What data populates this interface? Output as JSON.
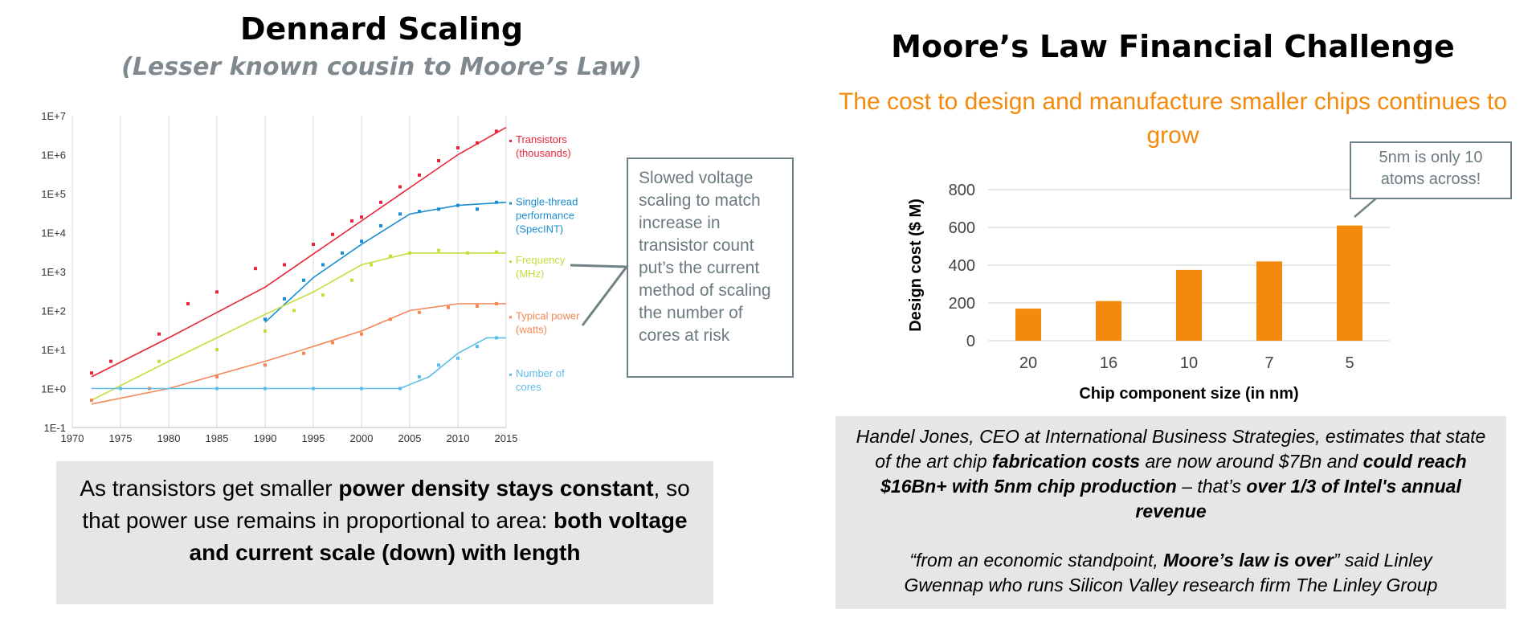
{
  "left": {
    "title": "Dennard Scaling",
    "subtitle": "(Lesser known cousin to Moore’s Law)",
    "callout": "Slowed voltage scaling to match increase in transistor count put’s the current method of scaling the number of cores at risk",
    "caption": {
      "t1": "As transistors get smaller ",
      "b1": "power density stays constant",
      "t2": ", so that power use remains in proportional to area: ",
      "b2": "both voltage and current scale (down) with length"
    }
  },
  "right": {
    "title": "Moore’s Law Financial Challenge",
    "subtitle": "The cost to design and manufacture smaller chips continues to grow",
    "callout": "5nm is only 10 atoms across!",
    "quote": {
      "p1": {
        "t1": "Handel Jones, CEO at International Business Strategies, estimates that state of the art chip ",
        "b1": "fabrication costs",
        "t2": " are now around $7Bn and ",
        "b2": "could reach $16Bn+ with 5nm chip production",
        "t3": " – that’s ",
        "b3": "over 1/3 of Intel's annual revenue"
      },
      "p2": {
        "t1": "“from an economic standpoint, ",
        "b1": "Moore’s law is over",
        "t2": "” said Linley Gwennap who runs Silicon Valley research firm The Linley Group"
      }
    }
  },
  "chart_data": [
    {
      "type": "scatter",
      "title": "",
      "xlabel": "",
      "ylabel": "",
      "log_y": true,
      "xlim": [
        1970,
        2015
      ],
      "ylim": [
        0.1,
        10000000
      ],
      "x_ticks": [
        "1970",
        "1975",
        "1980",
        "1985",
        "1990",
        "1995",
        "2000",
        "2005",
        "2010",
        "2015"
      ],
      "y_ticks": [
        "1E-1",
        "1E+0",
        "1E+1",
        "1E+2",
        "1E+3",
        "1E+4",
        "1E+5",
        "1E+6",
        "1E+7"
      ],
      "grid": "vertical",
      "legend": "right",
      "series": [
        {
          "name": "Transistors (thousands)",
          "color": "#e8263a",
          "trend": [
            [
              1972,
              2
            ],
            [
              1980,
              20
            ],
            [
              1990,
              400
            ],
            [
              2000,
              20000
            ],
            [
              2010,
              1000000
            ],
            [
              2015,
              5000000
            ]
          ],
          "points": [
            [
              1972,
              2.5
            ],
            [
              1974,
              5
            ],
            [
              1979,
              25
            ],
            [
              1982,
              150
            ],
            [
              1985,
              300
            ],
            [
              1989,
              1200
            ],
            [
              1992,
              1500
            ],
            [
              1995,
              5000
            ],
            [
              1997,
              9000
            ],
            [
              1999,
              20000
            ],
            [
              2000,
              25000
            ],
            [
              2002,
              60000
            ],
            [
              2004,
              150000
            ],
            [
              2006,
              300000
            ],
            [
              2008,
              700000
            ],
            [
              2010,
              1500000
            ],
            [
              2012,
              2000000
            ],
            [
              2014,
              4000000
            ]
          ]
        },
        {
          "name": "Single-thread performance (SpecINT)",
          "color": "#1a8ed1",
          "trend": [
            [
              1990,
              50
            ],
            [
              1995,
              700
            ],
            [
              2000,
              5000
            ],
            [
              2005,
              30000
            ],
            [
              2010,
              50000
            ],
            [
              2015,
              60000
            ]
          ],
          "points": [
            [
              1990,
              60
            ],
            [
              1992,
              200
            ],
            [
              1994,
              600
            ],
            [
              1996,
              1500
            ],
            [
              1998,
              3000
            ],
            [
              2000,
              6000
            ],
            [
              2002,
              15000
            ],
            [
              2004,
              30000
            ],
            [
              2006,
              35000
            ],
            [
              2008,
              40000
            ],
            [
              2010,
              50000
            ],
            [
              2012,
              40000
            ],
            [
              2014,
              60000
            ]
          ]
        },
        {
          "name": "Frequency (MHz)",
          "color": "#c8dc3c",
          "trend": [
            [
              1972,
              0.5
            ],
            [
              1980,
              5
            ],
            [
              1990,
              80
            ],
            [
              1995,
              300
            ],
            [
              2000,
              1500
            ],
            [
              2005,
              3000
            ],
            [
              2010,
              3000
            ],
            [
              2015,
              3000
            ]
          ],
          "points": [
            [
              1972,
              0.5
            ],
            [
              1979,
              5
            ],
            [
              1985,
              10
            ],
            [
              1990,
              30
            ],
            [
              1993,
              100
            ],
            [
              1996,
              250
            ],
            [
              1999,
              600
            ],
            [
              2001,
              1500
            ],
            [
              2003,
              2500
            ],
            [
              2005,
              3000
            ],
            [
              2008,
              3500
            ],
            [
              2011,
              3000
            ],
            [
              2014,
              3200
            ]
          ]
        },
        {
          "name": "Typical power (watts)",
          "color": "#f38755",
          "trend": [
            [
              1972,
              0.4
            ],
            [
              1980,
              1
            ],
            [
              1990,
              5
            ],
            [
              1995,
              12
            ],
            [
              2000,
              30
            ],
            [
              2005,
              100
            ],
            [
              2010,
              150
            ],
            [
              2015,
              150
            ]
          ],
          "points": [
            [
              1972,
              0.5
            ],
            [
              1978,
              1
            ],
            [
              1985,
              2
            ],
            [
              1990,
              4
            ],
            [
              1994,
              8
            ],
            [
              1997,
              15
            ],
            [
              2000,
              25
            ],
            [
              2003,
              60
            ],
            [
              2006,
              90
            ],
            [
              2009,
              120
            ],
            [
              2012,
              130
            ],
            [
              2014,
              150
            ]
          ]
        },
        {
          "name": "Number of cores",
          "color": "#5fbce8",
          "trend": [
            [
              1972,
              1
            ],
            [
              2004,
              1
            ],
            [
              2007,
              2
            ],
            [
              2010,
              8
            ],
            [
              2013,
              20
            ],
            [
              2015,
              20
            ]
          ],
          "points": [
            [
              1975,
              1
            ],
            [
              1985,
              1
            ],
            [
              1990,
              1
            ],
            [
              1995,
              1
            ],
            [
              2000,
              1
            ],
            [
              2004,
              1
            ],
            [
              2006,
              2
            ],
            [
              2008,
              4
            ],
            [
              2010,
              6
            ],
            [
              2012,
              12
            ],
            [
              2014,
              20
            ]
          ]
        }
      ]
    },
    {
      "type": "bar",
      "title": "",
      "xlabel": "Chip component size (in nm)",
      "ylabel": "Design cost ($ M)",
      "categories": [
        "20",
        "16",
        "10",
        "7",
        "5"
      ],
      "values": [
        170,
        210,
        375,
        420,
        610
      ],
      "ylim": [
        0,
        800
      ],
      "y_ticks": [
        "0",
        "200",
        "400",
        "600",
        "800"
      ],
      "bar_color": "#f48a0b",
      "grid": "horizontal",
      "legend": "none"
    }
  ]
}
